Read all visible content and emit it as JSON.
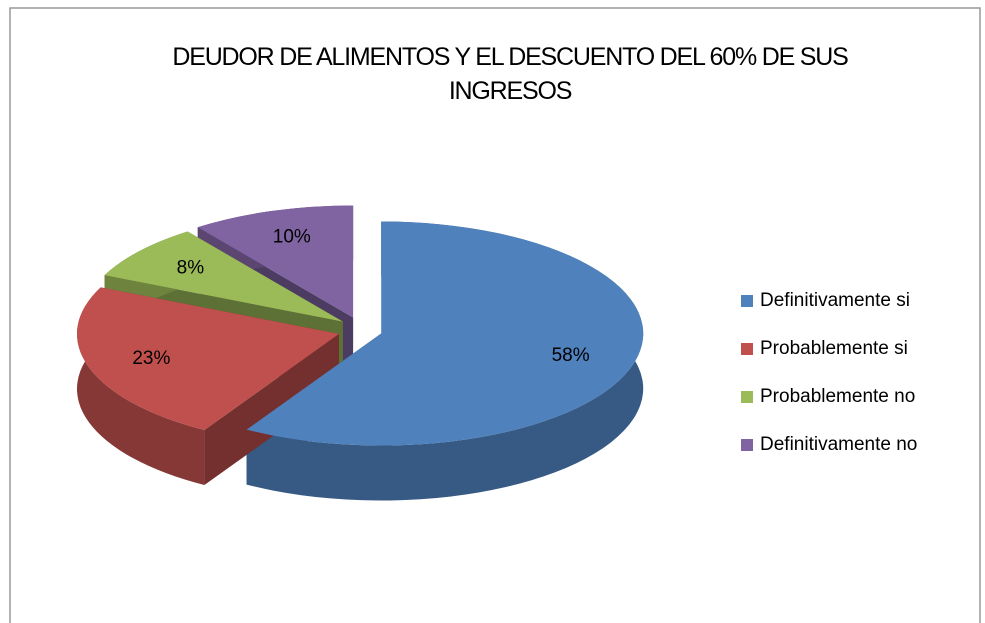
{
  "chart_data": {
    "type": "pie",
    "title": "DEUDOR DE ALIMENTOS Y EL DESCUENTO DEL 60% DE SUS INGRESOS",
    "categories": [
      "Definitivamente si",
      "Probablemente si",
      "Probablemente no",
      "Definitivamente no"
    ],
    "values": [
      58,
      23,
      8,
      10
    ],
    "value_labels": [
      "58%",
      "23%",
      "8%",
      "10%"
    ],
    "colors": [
      "#4f81bd",
      "#c0504d",
      "#9bbb59",
      "#8064a2"
    ],
    "legend": "right"
  }
}
